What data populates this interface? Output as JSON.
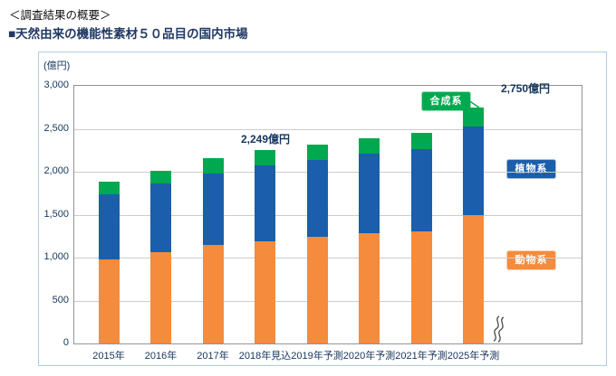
{
  "header": {
    "line1": "＜調査結果の概要＞",
    "line2": "■天然由来の機能性素材５０品目の国内市場"
  },
  "chart_data": {
    "type": "bar",
    "stacked": true,
    "title": "天然由来の機能性素材５０品目の国内市場",
    "unit_label": "(億円)",
    "ylim": [
      0,
      3000
    ],
    "ytick_step": 500,
    "yticks": [
      "3,000",
      "2,500",
      "2,000",
      "1,500",
      "1,000",
      "500",
      "0"
    ],
    "grid": "horizontal",
    "legend_position": "inside-right",
    "categories": [
      "2015年",
      "2016年",
      "2017年",
      "2018年見込",
      "2019年予測",
      "2020年予測",
      "2021年予測",
      "2025年予測"
    ],
    "series": [
      {
        "name": "動物系",
        "color": "#F58B3C",
        "values": [
          975,
          1060,
          1150,
          1190,
          1240,
          1280,
          1310,
          1490
        ]
      },
      {
        "name": "植物系",
        "color": "#1B5EAB",
        "values": [
          760,
          800,
          830,
          890,
          900,
          930,
          950,
          1040
        ]
      },
      {
        "name": "合成系",
        "color": "#00A94F",
        "values": [
          150,
          155,
          175,
          169,
          175,
          185,
          190,
          220
        ]
      }
    ],
    "totals": [
      1885,
      2015,
      2155,
      2249,
      2315,
      2395,
      2450,
      2750
    ],
    "annotations": [
      {
        "text": "2,249億円",
        "category": "2018年見込"
      },
      {
        "text": "2,750億円",
        "category": "2025年予測"
      }
    ],
    "axis_break_between": [
      "2021年予測",
      "2025年予測"
    ]
  },
  "legend": {
    "items": [
      {
        "label": "合成系",
        "color": "#00A94F"
      },
      {
        "label": "植物系",
        "color": "#1B5EAB"
      },
      {
        "label": "動物系",
        "color": "#F58B3C"
      }
    ]
  }
}
